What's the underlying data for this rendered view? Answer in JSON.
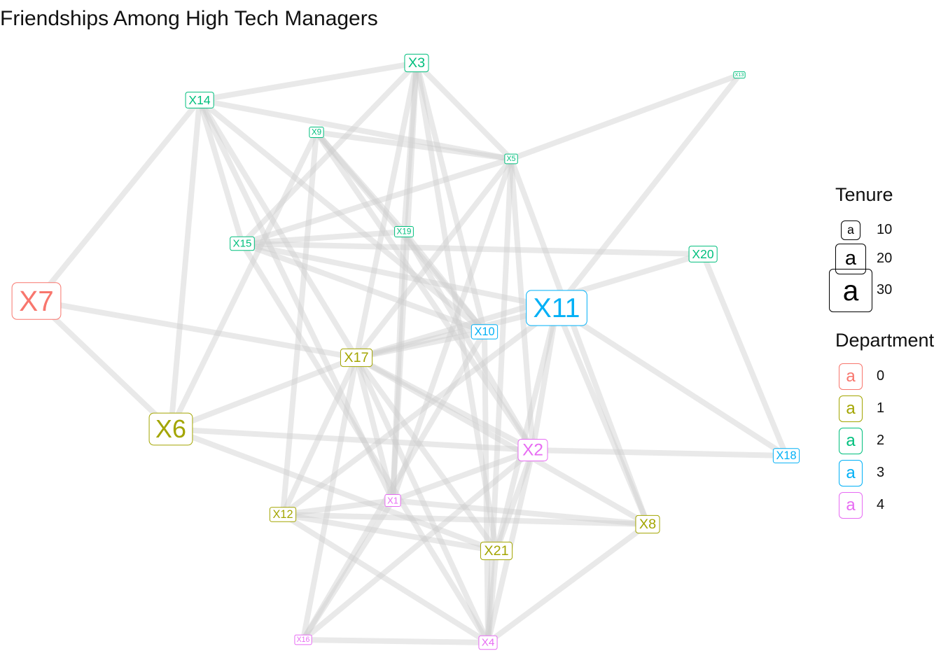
{
  "title": "Friendships Among High Tech Managers",
  "nodes": [
    {
      "id": "X1",
      "department": 4,
      "tenure": 6
    },
    {
      "id": "X2",
      "department": 4,
      "tenure": 16
    },
    {
      "id": "X3",
      "department": 2,
      "tenure": 12
    },
    {
      "id": "X4",
      "department": 4,
      "tenure": 8
    },
    {
      "id": "X5",
      "department": 2,
      "tenure": 4
    },
    {
      "id": "X6",
      "department": 1,
      "tenure": 26
    },
    {
      "id": "X7",
      "department": 0,
      "tenure": 30
    },
    {
      "id": "X8",
      "department": 1,
      "tenure": 12
    },
    {
      "id": "X9",
      "department": 2,
      "tenure": 5
    },
    {
      "id": "X10",
      "department": 3,
      "tenure": 9
    },
    {
      "id": "X11",
      "department": 3,
      "tenure": 29
    },
    {
      "id": "X12",
      "department": 1,
      "tenure": 9
    },
    {
      "id": "X13",
      "department": 2,
      "tenure": 1
    },
    {
      "id": "X14",
      "department": 2,
      "tenure": 10
    },
    {
      "id": "X15",
      "department": 2,
      "tenure": 8
    },
    {
      "id": "X16",
      "department": 4,
      "tenure": 4
    },
    {
      "id": "X17",
      "department": 1,
      "tenure": 12
    },
    {
      "id": "X18",
      "department": 3,
      "tenure": 9
    },
    {
      "id": "X19",
      "department": 2,
      "tenure": 5
    },
    {
      "id": "X20",
      "department": 2,
      "tenure": 10
    },
    {
      "id": "X21",
      "department": 1,
      "tenure": 12
    }
  ],
  "edges": [
    [
      "X7",
      "X14"
    ],
    [
      "X7",
      "X17"
    ],
    [
      "X7",
      "X6"
    ],
    [
      "X14",
      "X3"
    ],
    [
      "X14",
      "X5"
    ],
    [
      "X14",
      "X15"
    ],
    [
      "X14",
      "X17"
    ],
    [
      "X14",
      "X10"
    ],
    [
      "X14",
      "X1"
    ],
    [
      "X3",
      "X5"
    ],
    [
      "X3",
      "X15"
    ],
    [
      "X3",
      "X19"
    ],
    [
      "X3",
      "X17"
    ],
    [
      "X3",
      "X10"
    ],
    [
      "X3",
      "X1"
    ],
    [
      "X3",
      "X21"
    ],
    [
      "X9",
      "X5"
    ],
    [
      "X9",
      "X6"
    ],
    [
      "X9",
      "X19"
    ],
    [
      "X9",
      "X10"
    ],
    [
      "X9",
      "X2"
    ],
    [
      "X9",
      "X12"
    ],
    [
      "X5",
      "X15"
    ],
    [
      "X5",
      "X17"
    ],
    [
      "X5",
      "X2"
    ],
    [
      "X5",
      "X4"
    ],
    [
      "X5",
      "X13"
    ],
    [
      "X5",
      "X1"
    ],
    [
      "X5",
      "X8"
    ],
    [
      "X15",
      "X11"
    ],
    [
      "X15",
      "X20"
    ],
    [
      "X15",
      "X10"
    ],
    [
      "X15",
      "X4"
    ],
    [
      "X15",
      "X19"
    ],
    [
      "X19",
      "X10"
    ],
    [
      "X19",
      "X1"
    ],
    [
      "X19",
      "X2"
    ],
    [
      "X13",
      "X11"
    ],
    [
      "X20",
      "X17"
    ],
    [
      "X20",
      "X18"
    ],
    [
      "X11",
      "X17"
    ],
    [
      "X11",
      "X2"
    ],
    [
      "X11",
      "X12"
    ],
    [
      "X11",
      "X21"
    ],
    [
      "X11",
      "X8"
    ],
    [
      "X11",
      "X18"
    ],
    [
      "X10",
      "X17"
    ],
    [
      "X10",
      "X16"
    ],
    [
      "X10",
      "X4"
    ],
    [
      "X17",
      "X6"
    ],
    [
      "X17",
      "X2"
    ],
    [
      "X17",
      "X12"
    ],
    [
      "X17",
      "X1"
    ],
    [
      "X17",
      "X21"
    ],
    [
      "X17",
      "X4"
    ],
    [
      "X17",
      "X8"
    ],
    [
      "X17",
      "X16"
    ],
    [
      "X6",
      "X2"
    ],
    [
      "X6",
      "X21"
    ],
    [
      "X6",
      "X14"
    ],
    [
      "X2",
      "X18"
    ],
    [
      "X2",
      "X1"
    ],
    [
      "X2",
      "X21"
    ],
    [
      "X2",
      "X4"
    ],
    [
      "X2",
      "X16"
    ],
    [
      "X1",
      "X12"
    ],
    [
      "X1",
      "X8"
    ],
    [
      "X1",
      "X16"
    ],
    [
      "X12",
      "X21"
    ],
    [
      "X12",
      "X4"
    ],
    [
      "X12",
      "X8"
    ],
    [
      "X16",
      "X4"
    ],
    [
      "X8",
      "X4"
    ],
    [
      "X21",
      "X4"
    ]
  ],
  "legend": {
    "tenure": {
      "title": "Tenure",
      "key_glyph": "a",
      "items": [
        {
          "label": "10",
          "value": 10
        },
        {
          "label": "20",
          "value": 20
        },
        {
          "label": "30",
          "value": 30
        }
      ]
    },
    "department": {
      "title": "Department",
      "key_glyph": "a",
      "items": [
        {
          "label": "0",
          "color": "#F8766D"
        },
        {
          "label": "1",
          "color": "#A3A500"
        },
        {
          "label": "2",
          "color": "#00BF7D"
        },
        {
          "label": "3",
          "color": "#00B0F6"
        },
        {
          "label": "4",
          "color": "#E76BF3"
        }
      ]
    }
  },
  "department_colors": [
    "#F8766D",
    "#A3A500",
    "#00BF7D",
    "#00B0F6",
    "#E76BF3"
  ],
  "edge_color": "#cfcfcf"
}
